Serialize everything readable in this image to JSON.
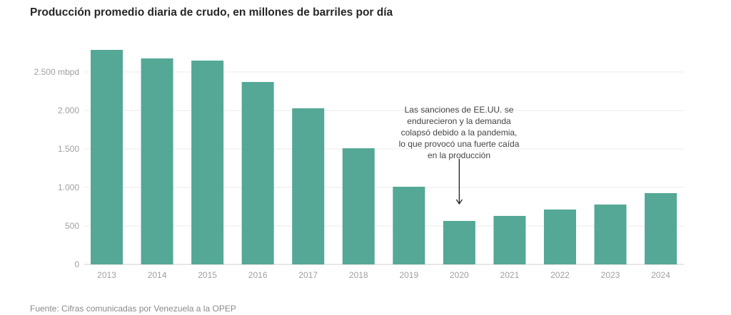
{
  "title": "Producción promedio diaria de crudo, en millones de barriles por día",
  "source": "Fuente: Cifras comunicadas por Venezuela a la OPEP",
  "chart_data": {
    "type": "bar",
    "title": "Producción promedio diaria de crudo, en millones de barriles por día",
    "xlabel": "",
    "ylabel": "",
    "unit": "mbpd",
    "categories": [
      "2013",
      "2014",
      "2015",
      "2016",
      "2017",
      "2018",
      "2019",
      "2020",
      "2021",
      "2022",
      "2023",
      "2024"
    ],
    "values": [
      2787,
      2676,
      2648,
      2370,
      2028,
      1509,
      1009,
      565,
      630,
      713,
      778,
      926
    ],
    "ylim": [
      0,
      2800
    ],
    "yticks": [
      0,
      500,
      1000,
      1500,
      2000,
      2500
    ],
    "ytick_labels": [
      "0",
      "500",
      "1.000",
      "1.500",
      "2.000",
      "2.500 mbpd"
    ],
    "grid": true,
    "bar_color": "#54a895",
    "annotation": {
      "category": "2020",
      "text": "Las sanciones de EE.UU. se\nendurecieron y la demanda\ncolapsó debido a la pandemia,\nlo que provocó una fuerte caída\nen la producción"
    }
  }
}
